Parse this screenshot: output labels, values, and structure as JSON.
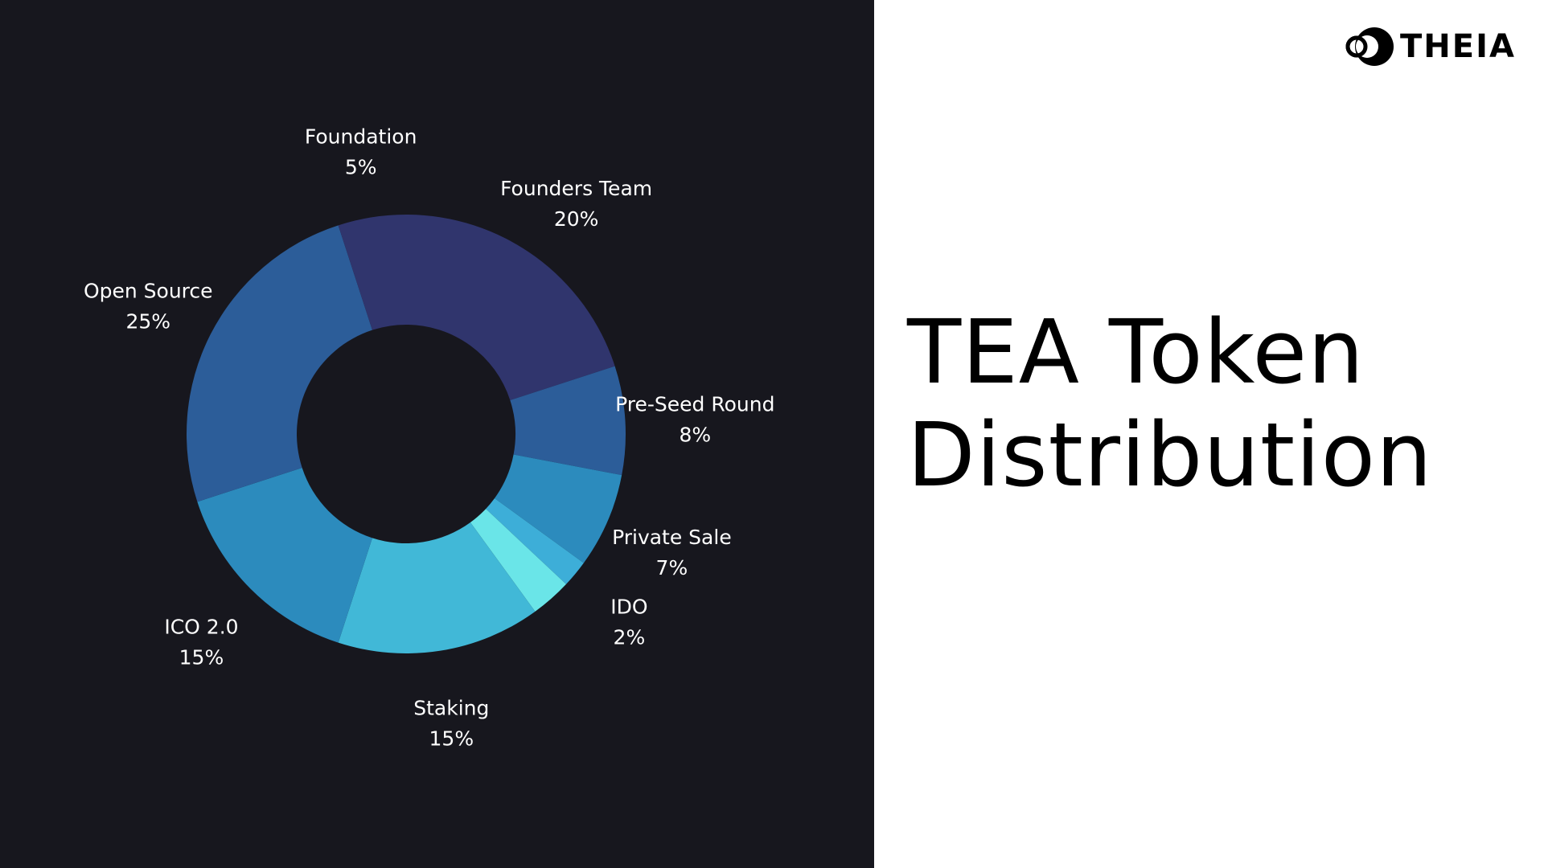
{
  "chart_data": {
    "type": "pie",
    "title": "",
    "slices": [
      {
        "label": "Founders Team",
        "value": 20,
        "display": "20%",
        "color": "#30356d"
      },
      {
        "label": "Pre-Seed Round",
        "value": 8,
        "display": "8%",
        "color": "#2c5d99"
      },
      {
        "label": "Private Sale",
        "value": 7,
        "display": "7%",
        "color": "#2c8bbd"
      },
      {
        "label": "IDO",
        "value": 2,
        "display": "2%",
        "color": "#3daed8"
      },
      {
        "label": "",
        "value": 3,
        "display": "",
        "color": "#6ae5e8"
      },
      {
        "label": "Staking",
        "value": 15,
        "display": "15%",
        "color": "#41b8d7"
      },
      {
        "label": "ICO 2.0",
        "value": 15,
        "display": "15%",
        "color": "#2c8bbd"
      },
      {
        "label": "Open Source",
        "value": 25,
        "display": "25%",
        "color": "#2c5d99"
      },
      {
        "label": "Foundation",
        "value": 5,
        "display": "5%",
        "color": "#30356d"
      }
    ]
  },
  "heading": {
    "line1": "TEA Token",
    "line2": "Distribution"
  },
  "logo": {
    "text": "THEIA"
  }
}
